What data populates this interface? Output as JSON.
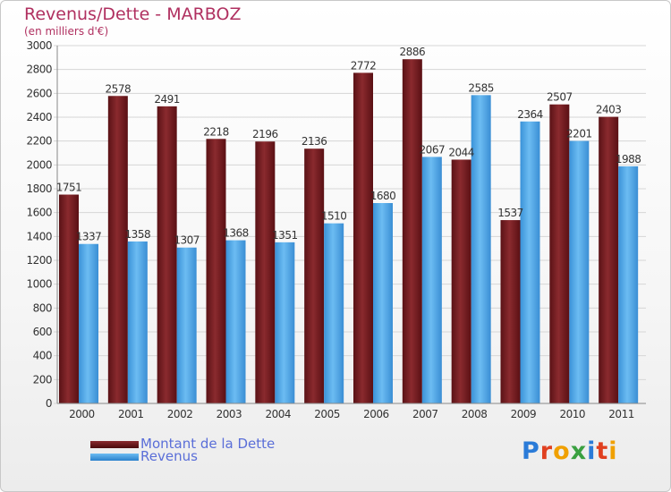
{
  "title": "Revenus/Dette - MARBOZ",
  "subtitle": "(en milliers d'€)",
  "colors": {
    "dette": "#6e1a1e",
    "revenus": "#4da6e8",
    "title": "#b03060",
    "legend_text": "#5a6ed8"
  },
  "legend": [
    {
      "label": "Montant de la Dette",
      "color": "#6e1a1e"
    },
    {
      "label": "Revenus",
      "color": "#4da6e8"
    }
  ],
  "logo": {
    "text": "Proxiti",
    "letters": [
      "P",
      "r",
      "o",
      "x",
      "i",
      "t",
      "i"
    ],
    "colors": [
      "#2a7bd8",
      "#e04020",
      "#f0a000",
      "#3aa040",
      "#2a7bd8",
      "#e04020",
      "#f0a000"
    ]
  },
  "chart_data": {
    "type": "bar",
    "title": "Revenus/Dette - MARBOZ",
    "subtitle": "(en milliers d'€)",
    "categories": [
      "2000",
      "2001",
      "2002",
      "2003",
      "2004",
      "2005",
      "2006",
      "2007",
      "2008",
      "2009",
      "2010",
      "2011"
    ],
    "series": [
      {
        "name": "Montant de la Dette",
        "values": [
          1751,
          2578,
          2491,
          2218,
          2196,
          2136,
          2772,
          2886,
          2044,
          1537,
          2507,
          2403
        ]
      },
      {
        "name": "Revenus",
        "values": [
          1337,
          1358,
          1307,
          1368,
          1351,
          1510,
          1680,
          2067,
          2585,
          2364,
          2201,
          1988
        ]
      }
    ],
    "ylim": [
      0,
      3000
    ],
    "yticks": [
      0,
      200,
      400,
      600,
      800,
      1000,
      1200,
      1400,
      1600,
      1800,
      2000,
      2200,
      2400,
      2600,
      2800,
      3000
    ],
    "xlabel": "",
    "ylabel": "",
    "grid": true,
    "legend_position": "bottom-left"
  }
}
